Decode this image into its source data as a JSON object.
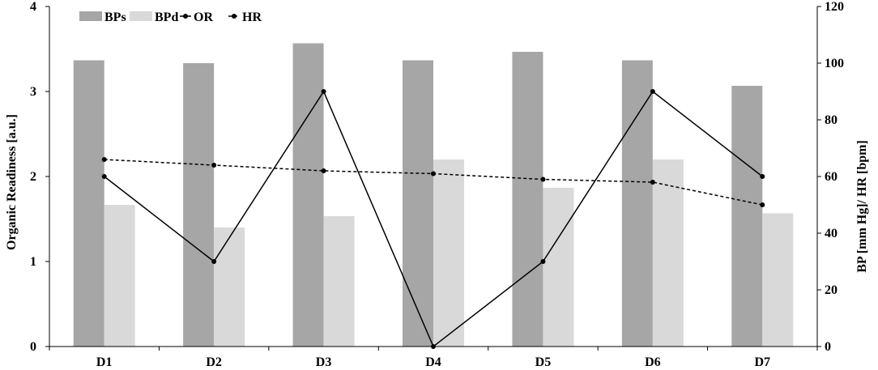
{
  "chart_data": {
    "type": "bar",
    "categories": [
      "D1",
      "D2",
      "D3",
      "D4",
      "D5",
      "D6",
      "D7"
    ],
    "left_axis": {
      "label": "Organic Readiness [a.u.]",
      "ylim": [
        0,
        4
      ],
      "ticks": [
        "0",
        "1",
        "2",
        "3",
        "4"
      ]
    },
    "right_axis": {
      "label": "BP [mm Hg]/ HR [bpm]",
      "ylim": [
        0,
        120
      ],
      "ticks": [
        "0",
        "20",
        "40",
        "60",
        "80",
        "100",
        "120"
      ]
    },
    "series": [
      {
        "name": "BPs",
        "kind": "bar",
        "axis": "right",
        "color": "#a6a6a6",
        "values": [
          101,
          100,
          107,
          101,
          104,
          101,
          92
        ]
      },
      {
        "name": "BPd",
        "kind": "bar",
        "axis": "right",
        "color": "#d9d9d9",
        "values": [
          50,
          42,
          46,
          66,
          56,
          66,
          47
        ]
      },
      {
        "name": "OR",
        "kind": "line",
        "axis": "left",
        "style": "solid",
        "color": "#000000",
        "values": [
          2,
          1,
          3,
          0,
          1,
          3,
          2
        ]
      },
      {
        "name": "HR",
        "kind": "line",
        "axis": "right",
        "style": "dashed",
        "color": "#000000",
        "values": [
          66,
          64,
          62,
          61,
          59,
          58,
          50
        ]
      }
    ],
    "legend_position": "top-left",
    "grid": false
  }
}
